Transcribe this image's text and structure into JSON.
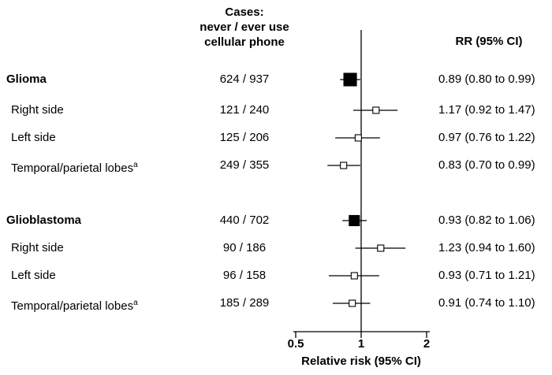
{
  "header": {
    "cases_line1": "Cases:",
    "cases_line2": "never / ever use",
    "cases_line3": "cellular phone",
    "rr_label": "RR (95% CI)"
  },
  "chart_data": {
    "type": "forest",
    "x_axis": {
      "scale": "log",
      "min": 0.5,
      "max": 2,
      "tick_values": [
        0.5,
        1,
        2
      ],
      "tick_labels": [
        "0.5",
        "1",
        "2"
      ],
      "reference_line": 1,
      "label": "Relative risk (95% CI)"
    },
    "rows": [
      {
        "label": "Glioma",
        "group_header": true,
        "cases": "624 / 937",
        "rr": 0.89,
        "ci_low": 0.8,
        "ci_high": 0.99,
        "rr_text": "0.89 (0.80 to 0.99)",
        "marker": "filled",
        "marker_size": 16
      },
      {
        "label": "Right side",
        "group_header": false,
        "cases": "121 / 240",
        "rr": 1.17,
        "ci_low": 0.92,
        "ci_high": 1.47,
        "rr_text": "1.17 (0.92 to 1.47)",
        "marker": "open",
        "marker_size": 8
      },
      {
        "label": "Left side",
        "group_header": false,
        "cases": "125 / 206",
        "rr": 0.97,
        "ci_low": 0.76,
        "ci_high": 1.22,
        "rr_text": "0.97 (0.76 to 1.22)",
        "marker": "open",
        "marker_size": 8
      },
      {
        "label": "Temporal/parietal lobes",
        "sup": "a",
        "group_header": false,
        "cases": "249 / 355",
        "rr": 0.83,
        "ci_low": 0.7,
        "ci_high": 0.99,
        "rr_text": "0.83 (0.70 to 0.99)",
        "marker": "open",
        "marker_size": 8
      },
      {
        "label": "Glioblastoma",
        "group_header": true,
        "cases": "440 / 702",
        "rr": 0.93,
        "ci_low": 0.82,
        "ci_high": 1.06,
        "rr_text": "0.93 (0.82 to 1.06)",
        "marker": "filled",
        "marker_size": 13
      },
      {
        "label": "Right side",
        "group_header": false,
        "cases": "90 / 186",
        "rr": 1.23,
        "ci_low": 0.94,
        "ci_high": 1.6,
        "rr_text": "1.23 (0.94 to 1.60)",
        "marker": "open",
        "marker_size": 8
      },
      {
        "label": "Left side",
        "group_header": false,
        "cases": "96 / 158",
        "rr": 0.93,
        "ci_low": 0.71,
        "ci_high": 1.21,
        "rr_text": "0.93 (0.71 to 1.21)",
        "marker": "open",
        "marker_size": 8
      },
      {
        "label": "Temporal/parietal lobes",
        "sup": "a",
        "group_header": false,
        "cases": "185 / 289",
        "rr": 0.91,
        "ci_low": 0.74,
        "ci_high": 1.1,
        "rr_text": "0.91 (0.74 to 1.10)",
        "marker": "open",
        "marker_size": 8
      }
    ]
  }
}
